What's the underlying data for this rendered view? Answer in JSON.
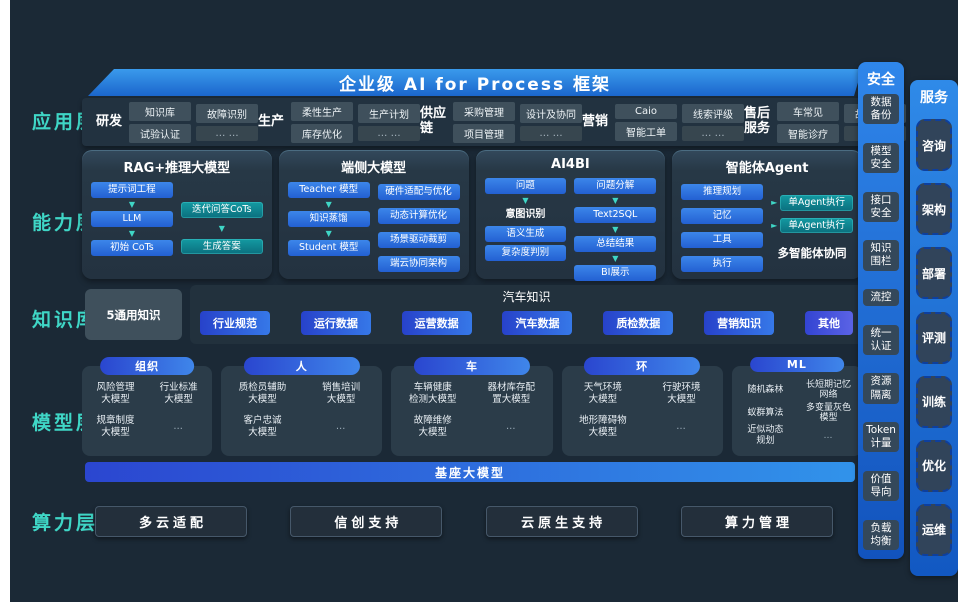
{
  "title": "企业级 AI for Process 框架",
  "colors": {
    "canvas_bg": "#1b2936",
    "accent_teal": "#3fd6c6",
    "banner_blue": "#1b66cc",
    "box_blue": "#2b6fe3",
    "box_teal": "#0e8691",
    "pill_gradient": [
      "#2a46cf",
      "#3f86ea"
    ],
    "rail_blue": "#1a6ae0"
  },
  "layer_labels": [
    "应用层",
    "能力层",
    "知识库",
    "模型层",
    "算力层"
  ],
  "app_layer": {
    "groups": [
      {
        "name": "研发",
        "columns": [
          [
            "知识库",
            "试验认证"
          ],
          [
            "故障识别",
            "… …"
          ]
        ]
      },
      {
        "name": "生产",
        "columns": [
          [
            "柔性生产",
            "库存优化"
          ],
          [
            "生产计划",
            "… …"
          ]
        ]
      },
      {
        "name": "供应链",
        "columns": [
          [
            "采购管理",
            "项目管理"
          ],
          [
            "设计及协同",
            "… …"
          ]
        ]
      },
      {
        "name": "营销",
        "columns": [
          [
            "Caio",
            "智能工单"
          ],
          [
            "线索评级",
            "… …"
          ]
        ]
      },
      {
        "name": "售后服务",
        "columns": [
          [
            "车常见",
            "智能诊疗"
          ],
          [
            "故障预警",
            "… …"
          ]
        ]
      }
    ]
  },
  "capability_layer": {
    "panels": [
      {
        "title": "RAG+推理大模型",
        "lstyle": "start",
        "rstyle": "center",
        "left": [
          {
            "t": "提示词工程"
          },
          {
            "s": "arrow"
          },
          {
            "t": "LLM"
          },
          {
            "s": "arrow"
          },
          {
            "t": "初始 CoTs"
          }
        ],
        "right": [
          {
            "t": "迭代问答CoTs",
            "s": "teal"
          },
          {
            "s": "arrow"
          },
          {
            "t": "生成答案",
            "s": "teal"
          }
        ],
        "caption": ""
      },
      {
        "title": "端侧大模型",
        "lstyle": "start",
        "rstyle": "between",
        "left": [
          {
            "t": "Teacher 模型"
          },
          {
            "s": "arrow"
          },
          {
            "t": "知识蒸馏"
          },
          {
            "s": "arrow"
          },
          {
            "t": "Student 模型"
          }
        ],
        "right": [
          {
            "t": "硬件适配与优化"
          },
          {
            "t": "动态计算优化"
          },
          {
            "t": "场景驱动裁剪"
          },
          {
            "t": "端云协同架构"
          }
        ],
        "caption": ""
      },
      {
        "title": "AI4BI",
        "lstyle": "start",
        "rstyle": "start",
        "left": [
          {
            "t": "问题"
          },
          {
            "s": "arrow"
          },
          {
            "t": "意图识别",
            "s": "plain"
          },
          {
            "t": "语义生成"
          },
          {
            "t": "复杂度判别"
          }
        ],
        "right": [
          {
            "t": "问题分解"
          },
          {
            "s": "arrow"
          },
          {
            "t": "Text2SQL"
          },
          {
            "s": "arrow"
          },
          {
            "t": "总结结果"
          },
          {
            "s": "arrow"
          },
          {
            "t": "BI展示"
          }
        ],
        "caption": ""
      },
      {
        "title": "智能体Agent",
        "lstyle": "between",
        "rstyle": "center",
        "left": [
          {
            "t": "推理规划"
          },
          {
            "t": "记忆"
          },
          {
            "t": "工具"
          },
          {
            "t": "执行"
          }
        ],
        "right": [
          {
            "t": "单Agent执行",
            "s": "teal",
            "pre": true
          },
          {
            "t": "单Agent执行",
            "s": "teal",
            "pre": true
          }
        ],
        "caption": "多智能体协同"
      }
    ]
  },
  "knowledge_layer": {
    "general_box": "5通用知识",
    "auto_title": "汽车知识",
    "chips": [
      "行业规范",
      "运行数据",
      "运营数据",
      "汽车数据",
      "质检数据",
      "营销知识",
      "其他"
    ]
  },
  "model_layer": {
    "groups": [
      {
        "pill": "组织",
        "wide": false,
        "items": [
          "风险管理\n大模型",
          "行业标准\n大模型",
          "规章制度\n大模型",
          "…"
        ]
      },
      {
        "pill": "人",
        "wide": true,
        "items": [
          "质检员辅助\n大模型",
          "销售培训\n大模型",
          "客户忠诚\n大模型",
          "…"
        ]
      },
      {
        "pill": "车",
        "wide": true,
        "items": [
          "车辆健康\n检测大模型",
          "器材库存配\n置大模型",
          "故障维修\n大模型",
          "…"
        ]
      },
      {
        "pill": "环",
        "wide": true,
        "items": [
          "天气环境\n大模型",
          "行驶环境\n大模型",
          "地形障碍物\n大模型",
          "…"
        ]
      },
      {
        "pill": "ML",
        "wide": false,
        "items": [
          "随机森林",
          "长短期记忆\n网络",
          "蚁群算法",
          "多变量灰色\n模型",
          "近似动态\n规划",
          "…"
        ]
      }
    ],
    "base_bar": "基座大模型"
  },
  "compute_layer": {
    "buttons": [
      "多云适配",
      "信创支持",
      "云原生支持",
      "算力管理"
    ]
  },
  "security_rail": {
    "header": "安全",
    "items": [
      "数据\n备份",
      "模型\n安全",
      "接口\n安全",
      "知识\n围栏",
      "流控",
      "统一\n认证",
      "资源\n隔离",
      "Token\n计量",
      "价值\n导向",
      "负载\n均衡"
    ]
  },
  "service_rail": {
    "header": "服务",
    "items": [
      "咨询",
      "架构",
      "部署",
      "评测",
      "训练",
      "优化",
      "运维"
    ]
  }
}
